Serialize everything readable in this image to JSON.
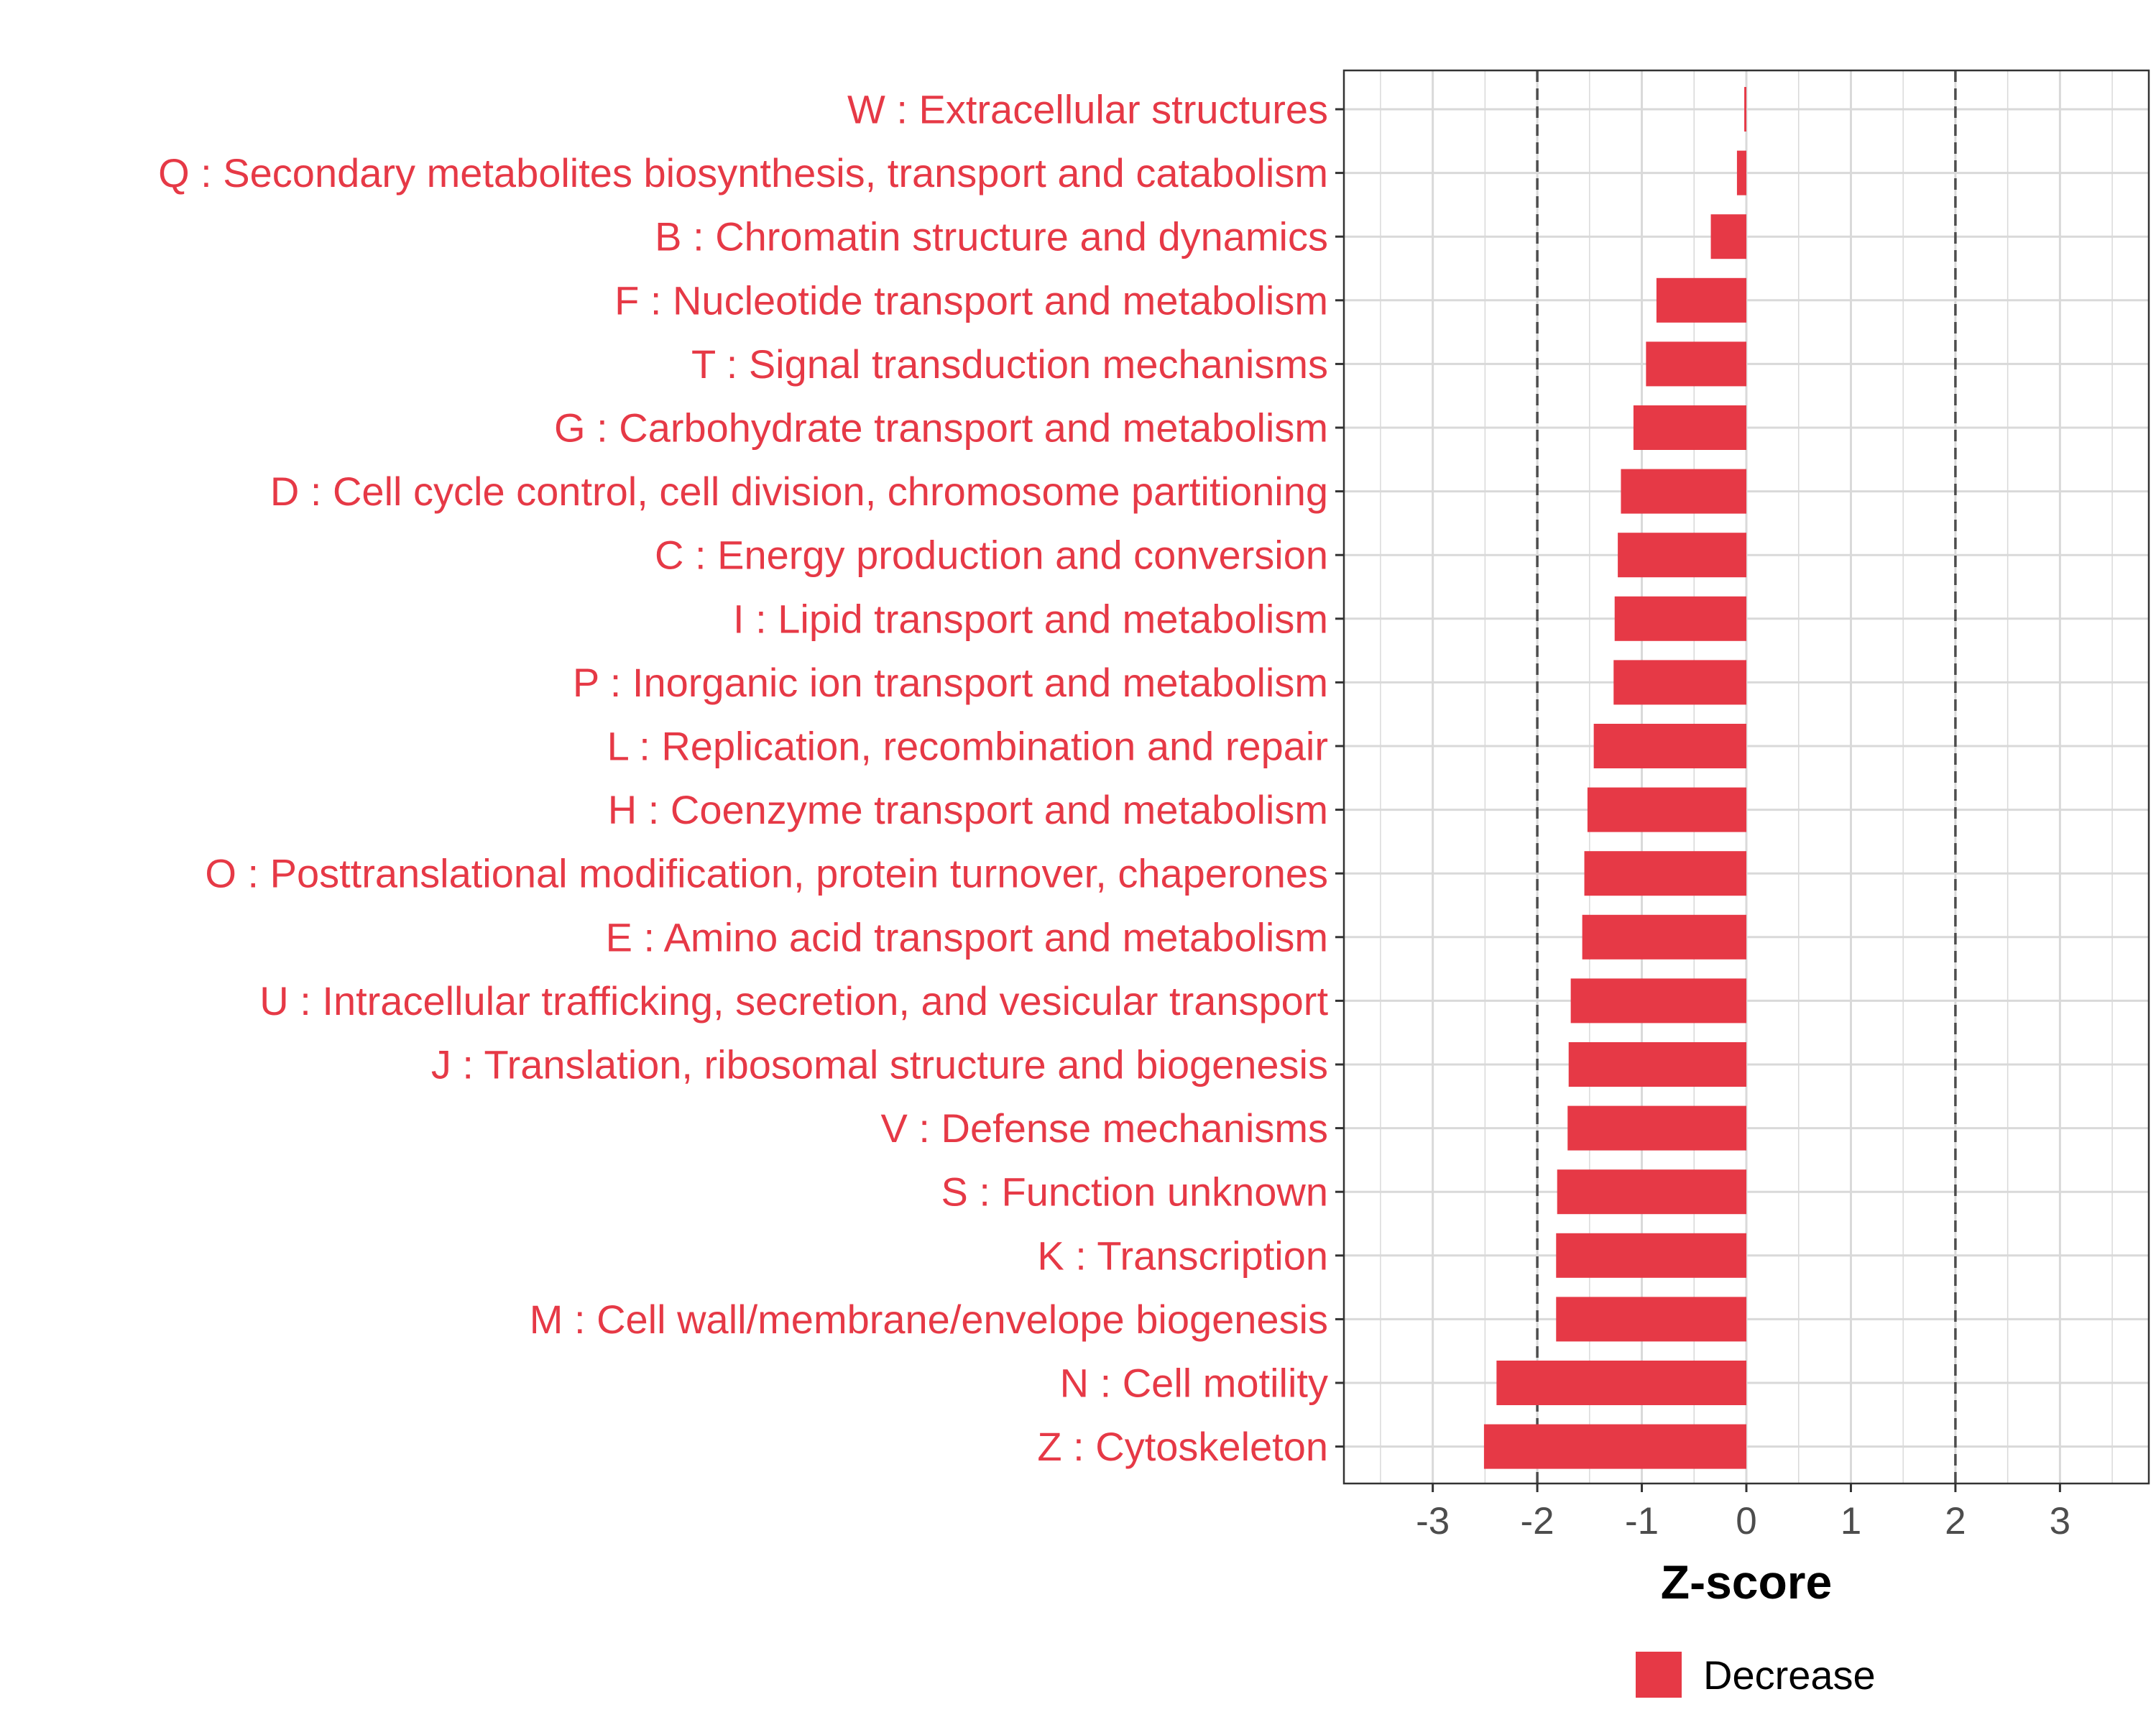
{
  "chart_data": {
    "type": "bar",
    "orientation": "horizontal",
    "categories": [
      "W : Extracellular structures",
      "Q : Secondary metabolites biosynthesis, transport and catabolism",
      "B : Chromatin structure and dynamics",
      "F : Nucleotide transport and metabolism",
      "T : Signal transduction mechanisms",
      "G : Carbohydrate transport and metabolism",
      "D : Cell cycle control, cell division, chromosome partitioning",
      "C : Energy production and conversion",
      "I : Lipid transport and metabolism",
      "P : Inorganic ion transport and metabolism",
      "L : Replication, recombination and repair",
      "H : Coenzyme transport and metabolism",
      "O : Posttranslational modification, protein turnover, chaperones",
      "E : Amino acid transport and metabolism",
      "U : Intracellular trafficking, secretion, and vesicular transport",
      "J : Translation, ribosomal structure and biogenesis",
      "V : Defense mechanisms",
      "S : Function unknown",
      "K : Transcription",
      "M : Cell wall/membrane/envelope biogenesis",
      "N : Cell motility",
      "Z : Cytoskeleton"
    ],
    "series": [
      {
        "name": "Decrease",
        "values": [
          -0.02,
          -0.09,
          -0.34,
          -0.86,
          -0.96,
          -1.08,
          -1.2,
          -1.23,
          -1.26,
          -1.27,
          -1.46,
          -1.52,
          -1.55,
          -1.57,
          -1.68,
          -1.7,
          -1.71,
          -1.81,
          -1.82,
          -1.82,
          -2.39,
          -2.51
        ]
      }
    ],
    "xlabel": "Z-score",
    "ylabel": "",
    "xlim": [
      -3.85,
      3.85
    ],
    "xticks": [
      -3,
      -2,
      -1,
      0,
      1,
      2,
      3
    ],
    "xtick_labels": [
      "-3",
      "-2",
      "-1",
      "0",
      "1",
      "2",
      "3"
    ],
    "reference_lines": [
      -2,
      2
    ],
    "grid": true,
    "legend_position": "bottom",
    "colors": {
      "Decrease": "#e63946",
      "label_text": "#e63946",
      "grid": "#d9d9d9",
      "reference_line": "#4d4d4d",
      "tick_text": "#4d4d4d"
    }
  }
}
